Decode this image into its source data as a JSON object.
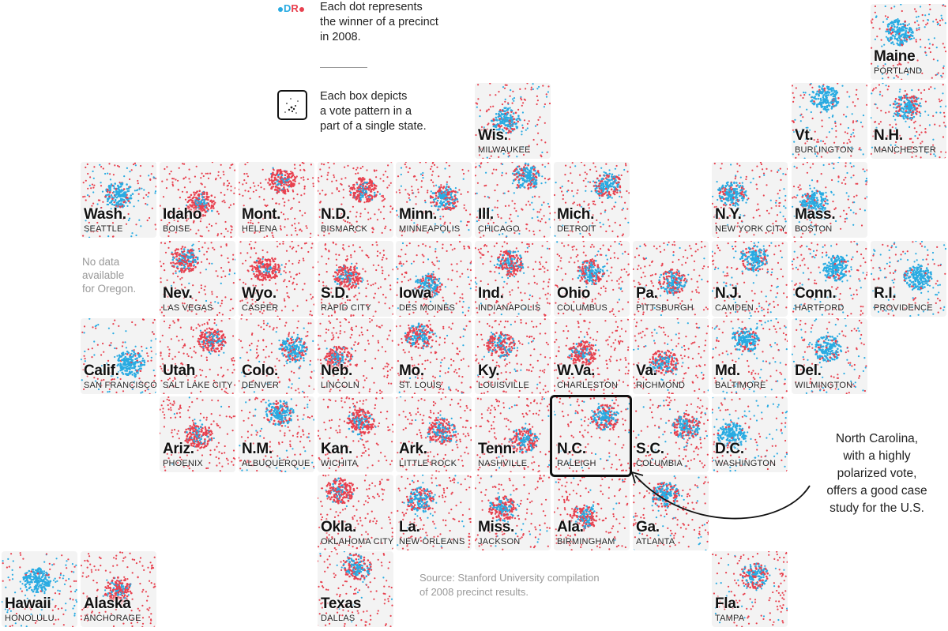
{
  "legend": {
    "dr_d": "D",
    "dr_r": "R",
    "dot_line1": "Each dot represents",
    "dot_line2": "the winner of a precinct",
    "dot_line3": "in 2008.",
    "box_line1": "Each box depicts",
    "box_line2": "a vote pattern in a",
    "box_line3": "part of a single state."
  },
  "colors": {
    "democrat": "#29abe2",
    "republican": "#e8414f",
    "water": "#c9c9c9"
  },
  "no_data": [
    "No data",
    "available",
    "for Oregon."
  ],
  "source": [
    "Source: Stanford University compilation",
    "of 2008 precinct results."
  ],
  "annotation": [
    "North Carolina,",
    "with a highly",
    "polarized vote,",
    "offers a good case",
    "study for the U.S."
  ],
  "tiles": [
    {
      "state": "Maine",
      "city": "PORTLAND",
      "dem": 0.85
    },
    {
      "state": "Wis.",
      "city": "MILWAUKEE",
      "dem": 0.55
    },
    {
      "state": "Vt.",
      "city": "BURLINGTON",
      "dem": 0.9
    },
    {
      "state": "N.H.",
      "city": "MANCHESTER",
      "dem": 0.55
    },
    {
      "state": "Wash.",
      "city": "SEATTLE",
      "dem": 0.75
    },
    {
      "state": "Idaho",
      "city": "BOISE",
      "dem": 0.08
    },
    {
      "state": "Mont.",
      "city": "HELENA",
      "dem": 0.1
    },
    {
      "state": "N.D.",
      "city": "BISMARCK",
      "dem": 0.08
    },
    {
      "state": "Minn.",
      "city": "MINNEAPOLIS",
      "dem": 0.45
    },
    {
      "state": "Ill.",
      "city": "CHICAGO",
      "dem": 0.6
    },
    {
      "state": "Mich.",
      "city": "DETROIT",
      "dem": 0.5
    },
    {
      "state": "N.Y.",
      "city": "NEW YORK CITY",
      "dem": 0.6
    },
    {
      "state": "Mass.",
      "city": "BOSTON",
      "dem": 0.85
    },
    {
      "state": "Nev.",
      "city": "LAS VEGAS",
      "dem": 0.35
    },
    {
      "state": "Wyo.",
      "city": "CASPER",
      "dem": 0.03
    },
    {
      "state": "S.D.",
      "city": "RAPID CITY",
      "dem": 0.12
    },
    {
      "state": "Iowa",
      "city": "DES MOINES",
      "dem": 0.45
    },
    {
      "state": "Ind.",
      "city": "INDIANAPOLIS",
      "dem": 0.3
    },
    {
      "state": "Ohio",
      "city": "COLUMBUS",
      "dem": 0.35
    },
    {
      "state": "Pa.",
      "city": "PITTSBURGH",
      "dem": 0.4
    },
    {
      "state": "N.J.",
      "city": "CAMDEN",
      "dem": 0.6
    },
    {
      "state": "Conn.",
      "city": "HARTFORD",
      "dem": 0.8
    },
    {
      "state": "R.I.",
      "city": "PROVIDENCE",
      "dem": 0.85
    },
    {
      "state": "Calif.",
      "city": "SAN FRANCISCO",
      "dem": 0.85
    },
    {
      "state": "Utah",
      "city": "SALT LAKE CITY",
      "dem": 0.15
    },
    {
      "state": "Colo.",
      "city": "DENVER",
      "dem": 0.55
    },
    {
      "state": "Neb.",
      "city": "LINCOLN",
      "dem": 0.1
    },
    {
      "state": "Mo.",
      "city": "ST. LOUIS",
      "dem": 0.35
    },
    {
      "state": "Ky.",
      "city": "LOUISVILLE",
      "dem": 0.3
    },
    {
      "state": "W.Va.",
      "city": "CHARLESTON",
      "dem": 0.15
    },
    {
      "state": "Va.",
      "city": "RICHMOND",
      "dem": 0.4
    },
    {
      "state": "Md.",
      "city": "BALTIMORE",
      "dem": 0.7
    },
    {
      "state": "Del.",
      "city": "WILMINGTON",
      "dem": 0.8
    },
    {
      "state": "Ariz.",
      "city": "PHOENIX",
      "dem": 0.2
    },
    {
      "state": "N.M.",
      "city": "ALBUQUERQUE",
      "dem": 0.55
    },
    {
      "state": "Kan.",
      "city": "WICHITA",
      "dem": 0.15
    },
    {
      "state": "Ark.",
      "city": "LITTLE ROCK",
      "dem": 0.25
    },
    {
      "state": "Tenn.",
      "city": "NASHVILLE",
      "dem": 0.3
    },
    {
      "state": "N.C.",
      "city": "RALEIGH",
      "dem": 0.45
    },
    {
      "state": "S.C.",
      "city": "COLUMBIA",
      "dem": 0.4
    },
    {
      "state": "D.C.",
      "city": "WASHINGTON",
      "dem": 0.85
    },
    {
      "state": "Okla.",
      "city": "OKLAHOMA CITY",
      "dem": 0.12
    },
    {
      "state": "La.",
      "city": "NEW ORLEANS",
      "dem": 0.4
    },
    {
      "state": "Miss.",
      "city": "JACKSON",
      "dem": 0.4
    },
    {
      "state": "Ala.",
      "city": "BIRMINGHAM",
      "dem": 0.3
    },
    {
      "state": "Ga.",
      "city": "ATLANTA",
      "dem": 0.5
    },
    {
      "state": "Hawaii",
      "city": "HONOLULU",
      "dem": 0.95
    },
    {
      "state": "Alaska",
      "city": "ANCHORAGE",
      "dem": 0.15
    },
    {
      "state": "Texas",
      "city": "DALLAS",
      "dem": 0.4
    },
    {
      "state": "Fla.",
      "city": "TAMPA",
      "dem": 0.45
    }
  ]
}
